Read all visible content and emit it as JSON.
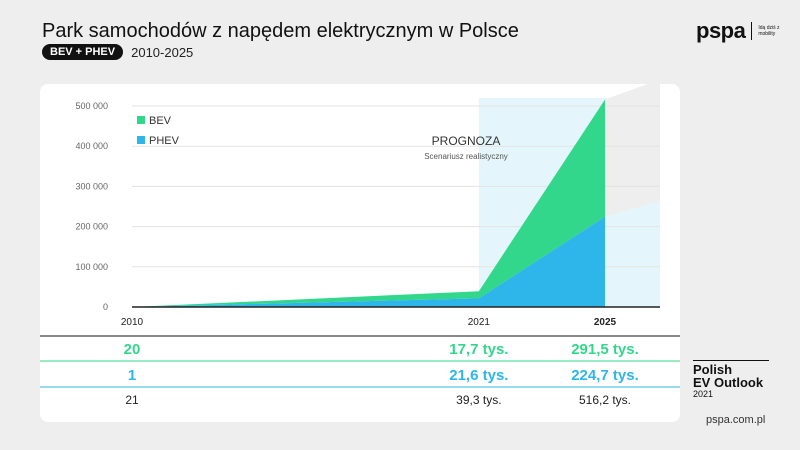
{
  "header": {
    "title": "Park samochodów z napędem elektrycznym w Polsce",
    "badge": "BEV + PHEV",
    "period": "2010-2025"
  },
  "logo": {
    "word": "pspa",
    "tagline": "Idą dziś z mobility"
  },
  "brand": {
    "line1": "Polish",
    "line2": "EV Outlook",
    "year": "2021"
  },
  "website": "pspa.com.pl",
  "colors": {
    "bev": "#33d78c",
    "phev": "#2eb5ea",
    "forecast_band": "#e4f6fb",
    "scenario_band": "#eeeeee",
    "axis": "#222222",
    "grid": "#e3e3e3"
  },
  "chart_data": {
    "type": "area",
    "stacked": true,
    "title": "Park samochodów z napędem elektrycznym w Polsce",
    "x": [
      2010,
      2021,
      2025
    ],
    "series": [
      {
        "name": "BEV",
        "values": [
          20,
          17700,
          291500
        ]
      },
      {
        "name": "PHEV",
        "values": [
          1,
          21600,
          224700
        ]
      }
    ],
    "totals": [
      21,
      39300,
      516200
    ],
    "ylim": [
      0,
      500000
    ],
    "yticks": [
      0,
      100000,
      200000,
      300000,
      400000,
      500000
    ],
    "ytick_labels": [
      "0",
      "100 000",
      "200 000",
      "300 000",
      "400 000",
      "500 000"
    ],
    "xtick_labels": [
      "2010",
      "2021",
      "2025"
    ],
    "legend": [
      "BEV",
      "PHEV"
    ],
    "legend_position": "top-left",
    "forecast": {
      "label": "PROGNOZA",
      "sublabel": "Scenariusz realistyczny",
      "start_x": 2021
    },
    "table": {
      "rows": [
        {
          "series": "BEV",
          "cells": [
            "20",
            "17,7 tys.",
            "291,5 tys."
          ]
        },
        {
          "series": "PHEV",
          "cells": [
            "1",
            "21,6 tys.",
            "224,7 tys."
          ]
        },
        {
          "series": "total",
          "cells": [
            "21",
            "39,3 tys.",
            "516,2 tys."
          ]
        }
      ]
    }
  }
}
